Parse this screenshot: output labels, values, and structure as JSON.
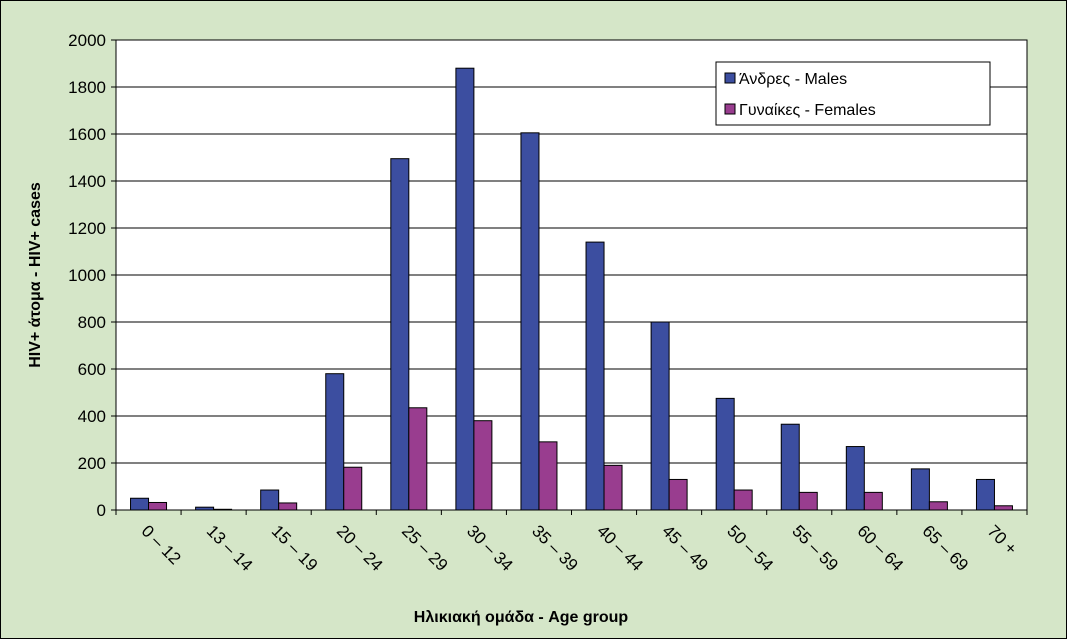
{
  "chart_data": {
    "type": "bar",
    "categories": [
      "0 – 12",
      "13 – 14",
      "15 – 19",
      "20 – 24",
      "25 – 29",
      "30 – 34",
      "35 – 39",
      "40 – 44",
      "45 – 49",
      "50 – 54",
      "55 – 59",
      "60 – 64",
      "65 – 69",
      "70 +"
    ],
    "series": [
      {
        "name": "Άνδρες - Males",
        "color": "#3c4ea0",
        "values": [
          50,
          12,
          85,
          580,
          1495,
          1880,
          1605,
          1140,
          800,
          475,
          365,
          270,
          175,
          130
        ]
      },
      {
        "name": "Γυναίκες - Females",
        "color": "#993d8f",
        "values": [
          32,
          3,
          30,
          182,
          435,
          380,
          290,
          190,
          130,
          85,
          75,
          75,
          35,
          18
        ]
      }
    ],
    "xlabel": "Ηλικιακή ομάδα - Age group",
    "ylabel": "HIV+ άτομα - HIV+ cases",
    "ylim": [
      0,
      2000
    ],
    "yticks": [
      0,
      200,
      400,
      600,
      800,
      1000,
      1200,
      1400,
      1600,
      1800,
      2000
    ],
    "grid": true,
    "legend_position": "top-right",
    "background_color": "#d5e6c8",
    "plot_background_color": "#ffffff"
  }
}
